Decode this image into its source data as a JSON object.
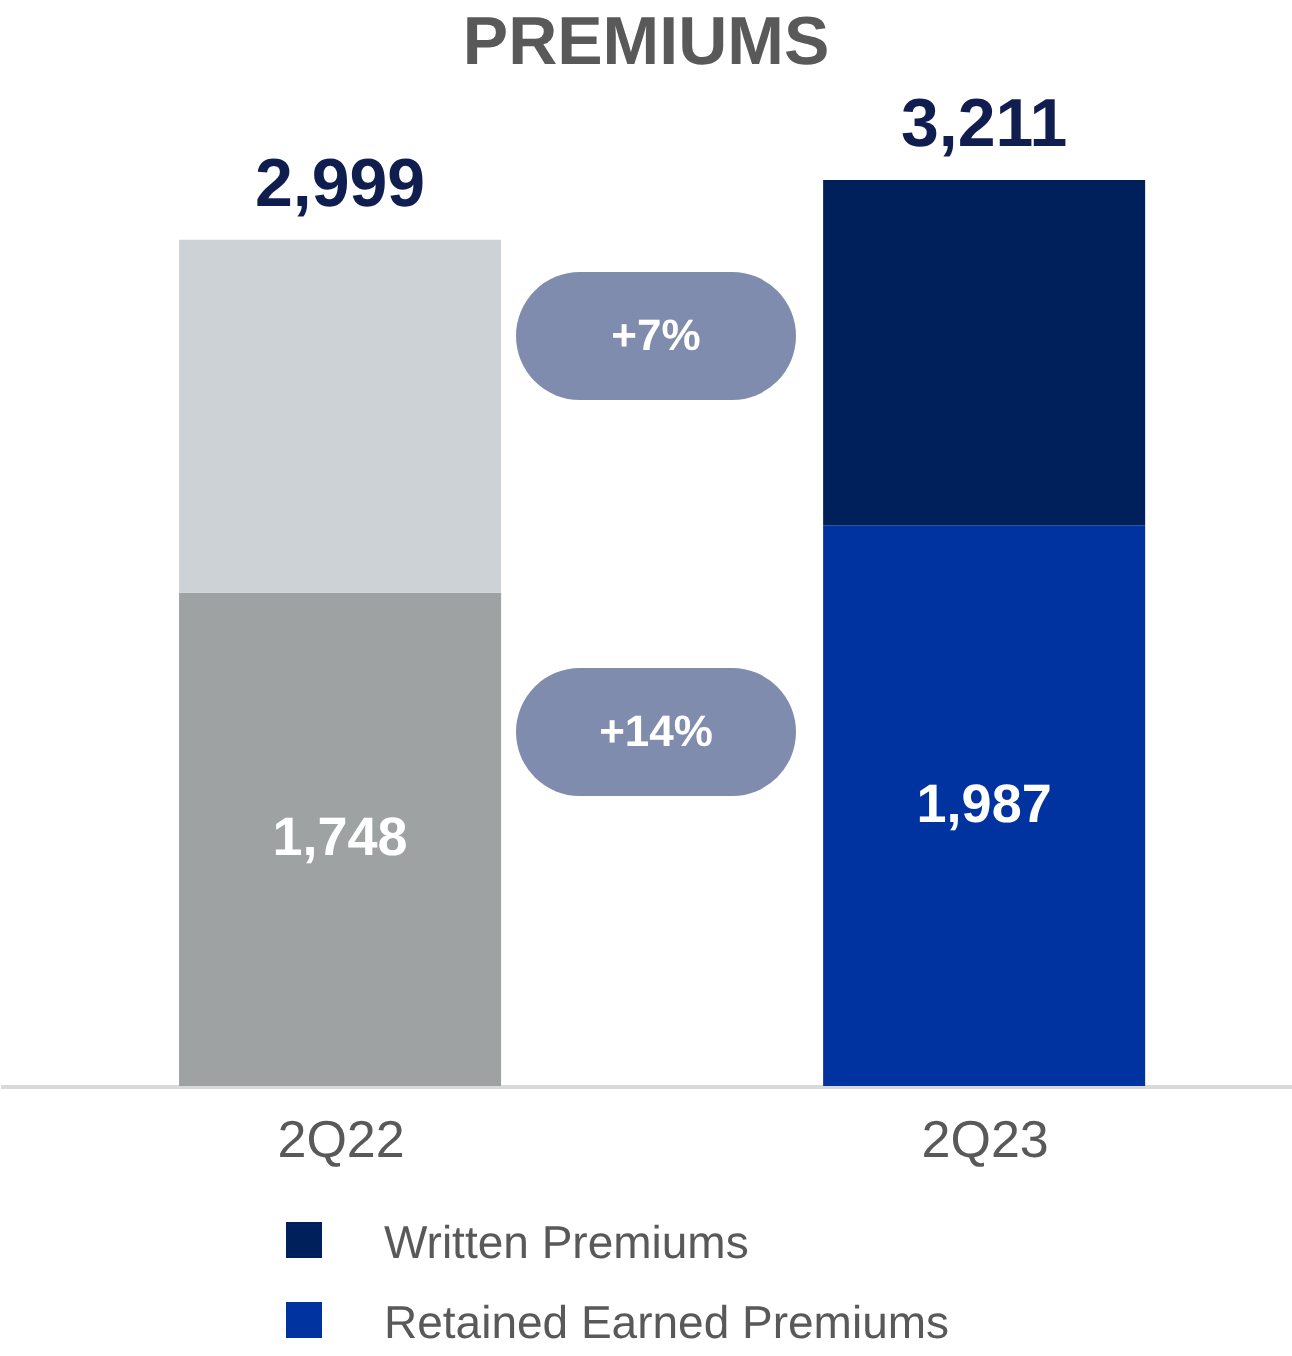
{
  "chart_data": {
    "type": "bar",
    "title": "PREMIUMS",
    "categories": [
      "2Q22",
      "2Q23"
    ],
    "stacked": true,
    "series": [
      {
        "name": "Retained Earned Premiums",
        "color": "#0033a0",
        "colors": [
          "#9ea2a3",
          "#0033a0"
        ],
        "values": [
          1748,
          1987
        ],
        "value_labels": [
          "1,748",
          "1,987"
        ]
      },
      {
        "name": "Written Premiums",
        "color": "#00205b",
        "colors": [
          "#cdd2d7",
          "#00205b"
        ],
        "values": [
          1251,
          1224
        ],
        "value_labels": [
          null,
          null
        ]
      }
    ],
    "totals": [
      "2,999",
      "3,211"
    ],
    "annotations": [
      "+7%",
      "+14%"
    ],
    "legend": "bottom"
  }
}
